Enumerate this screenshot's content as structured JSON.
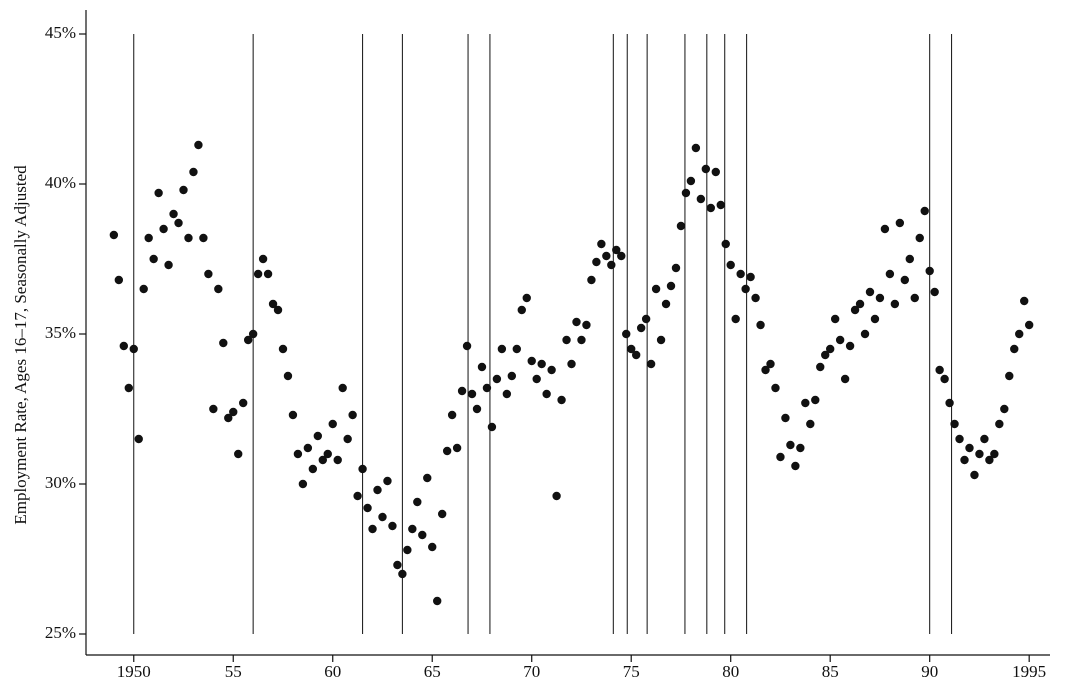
{
  "chart_data": {
    "type": "scatter",
    "y_label": "Employment Rate, Ages 16–17, Seasonally Adjusted",
    "xlim": [
      1947.6,
      1996.8
    ],
    "ylim": [
      24.3,
      45.8
    ],
    "xticks": [
      1950,
      {
        "value": 1955,
        "label": "55"
      },
      {
        "value": 1960,
        "label": "60"
      },
      {
        "value": 1965,
        "label": "65"
      },
      {
        "value": 1970,
        "label": "70"
      },
      {
        "value": 1975,
        "label": "75"
      },
      {
        "value": 1980,
        "label": "80"
      },
      {
        "value": 1985,
        "label": "85"
      },
      {
        "value": 1990,
        "label": "90"
      },
      1995
    ],
    "yticks": [
      {
        "value": 25,
        "label": "25%"
      },
      {
        "value": 30,
        "label": "30%"
      },
      {
        "value": 35,
        "label": "35%"
      },
      {
        "value": 40,
        "label": "40%"
      },
      {
        "value": 45,
        "label": "45%"
      }
    ],
    "vlines": [
      1950.0,
      1956.0,
      1961.5,
      1963.5,
      1966.8,
      1967.9,
      1974.1,
      1974.8,
      1975.8,
      1977.7,
      1978.8,
      1979.7,
      1980.8,
      1990.0,
      1991.1
    ],
    "vline_top": 45,
    "color": "#111111",
    "x": [
      1949,
      1949.25,
      1949.5,
      1949.75,
      1950,
      1950.25,
      1950.5,
      1950.75,
      1951,
      1951.25,
      1951.5,
      1951.75,
      1952,
      1952.25,
      1952.5,
      1952.75,
      1953,
      1953.25,
      1953.5,
      1953.75,
      1954,
      1954.25,
      1954.5,
      1954.75,
      1955,
      1955.25,
      1955.5,
      1955.75,
      1956,
      1956.25,
      1956.5,
      1956.75,
      1957,
      1957.25,
      1957.5,
      1957.75,
      1958,
      1958.25,
      1958.5,
      1958.75,
      1959,
      1959.25,
      1959.5,
      1959.75,
      1960,
      1960.25,
      1960.5,
      1960.75,
      1961,
      1961.25,
      1961.5,
      1961.75,
      1962,
      1962.25,
      1962.5,
      1962.75,
      1963,
      1963.25,
      1963.5,
      1963.75,
      1964,
      1964.25,
      1964.5,
      1964.75,
      1965,
      1965.25,
      1965.5,
      1965.75,
      1966,
      1966.25,
      1966.5,
      1966.75,
      1967,
      1967.25,
      1967.5,
      1967.75,
      1968,
      1968.25,
      1968.5,
      1968.75,
      1969,
      1969.25,
      1969.5,
      1969.75,
      1970,
      1970.25,
      1970.5,
      1970.75,
      1971,
      1971.25,
      1971.5,
      1971.75,
      1972,
      1972.25,
      1972.5,
      1972.75,
      1973,
      1973.25,
      1973.5,
      1973.75,
      1974,
      1974.25,
      1974.5,
      1974.75,
      1975,
      1975.25,
      1975.5,
      1975.75,
      1976,
      1976.25,
      1976.5,
      1976.75,
      1977,
      1977.25,
      1977.5,
      1977.75,
      1978,
      1978.25,
      1978.5,
      1978.75,
      1979,
      1979.25,
      1979.5,
      1979.75,
      1980,
      1980.25,
      1980.5,
      1980.75,
      1981,
      1981.25,
      1981.5,
      1981.75,
      1982,
      1982.25,
      1982.5,
      1982.75,
      1983,
      1983.25,
      1983.5,
      1983.75,
      1984,
      1984.25,
      1984.5,
      1984.75,
      1985,
      1985.25,
      1985.5,
      1985.75,
      1986,
      1986.25,
      1986.5,
      1986.75,
      1987,
      1987.25,
      1987.5,
      1987.75,
      1988,
      1988.25,
      1988.5,
      1988.75,
      1989,
      1989.25,
      1989.5,
      1989.75,
      1990,
      1990.25,
      1990.5,
      1990.75,
      1991,
      1991.25,
      1991.5,
      1991.75,
      1992,
      1992.25,
      1992.5,
      1992.75,
      1993,
      1993.25,
      1993.5,
      1993.75,
      1994,
      1994.25,
      1994.5,
      1994.75,
      1995
    ],
    "values": [
      38.3,
      36.8,
      34.6,
      33.2,
      34.5,
      31.5,
      36.5,
      38.2,
      37.5,
      39.7,
      38.5,
      37.3,
      39.0,
      38.7,
      39.8,
      38.2,
      40.4,
      41.3,
      38.2,
      37.0,
      32.5,
      36.5,
      34.7,
      32.2,
      32.4,
      31.0,
      32.7,
      34.8,
      35.0,
      37.0,
      37.5,
      37.0,
      36.0,
      35.8,
      34.5,
      33.6,
      32.3,
      31.0,
      30.0,
      31.2,
      30.5,
      31.6,
      30.8,
      31.0,
      32.0,
      30.8,
      33.2,
      31.5,
      32.3,
      29.6,
      30.5,
      29.2,
      28.5,
      29.8,
      28.9,
      30.1,
      28.6,
      27.3,
      27.0,
      27.8,
      28.5,
      29.4,
      28.3,
      30.2,
      27.9,
      26.1,
      29.0,
      31.1,
      32.3,
      31.2,
      33.1,
      34.6,
      33.0,
      32.5,
      33.9,
      33.2,
      31.9,
      33.5,
      34.5,
      33.0,
      33.6,
      34.5,
      35.8,
      36.2,
      34.1,
      33.5,
      34.0,
      33.0,
      33.8,
      29.6,
      32.8,
      34.8,
      34.0,
      35.4,
      34.8,
      35.3,
      36.8,
      37.4,
      38.0,
      37.6,
      37.3,
      37.8,
      37.6,
      35.0,
      34.5,
      34.3,
      35.2,
      35.5,
      34.0,
      36.5,
      34.8,
      36.0,
      36.6,
      37.2,
      38.6,
      39.7,
      40.1,
      41.2,
      39.5,
      40.5,
      39.2,
      40.4,
      39.3,
      38.0,
      37.3,
      35.5,
      37.0,
      36.5,
      36.9,
      36.2,
      35.3,
      33.8,
      34.0,
      33.2,
      30.9,
      32.2,
      31.3,
      30.6,
      31.2,
      32.7,
      32.0,
      32.8,
      33.9,
      34.3,
      34.5,
      35.5,
      34.8,
      33.5,
      34.6,
      35.8,
      36.0,
      35.0,
      36.4,
      35.5,
      36.2,
      38.5,
      37.0,
      36.0,
      38.7,
      36.8,
      37.5,
      36.2,
      38.2,
      39.1,
      37.1,
      36.4,
      33.8,
      33.5,
      32.7,
      32.0,
      31.5,
      30.8,
      31.2,
      30.3,
      31.0,
      31.5,
      30.8,
      31.0,
      32.0,
      32.5,
      33.6,
      34.5,
      35.0,
      36.1,
      35.3
    ]
  }
}
